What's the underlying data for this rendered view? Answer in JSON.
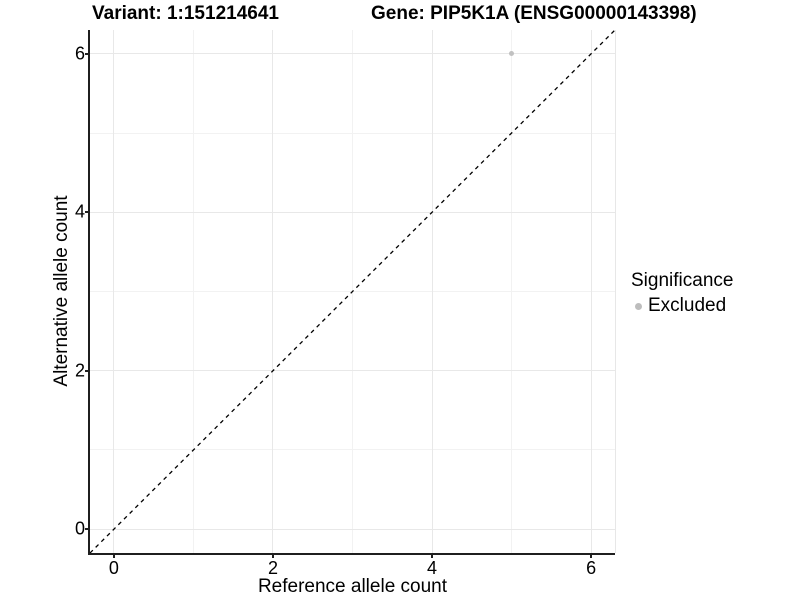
{
  "chart_data": {
    "type": "scatter",
    "title_left": "Variant: 1:151214641",
    "title_right": "Gene: PIP5K1A (ENSG00000143398)",
    "xlabel": "Reference allele count",
    "ylabel": "Alternative allele count",
    "xlim": [
      -0.3,
      6.3
    ],
    "ylim": [
      -0.3,
      6.3
    ],
    "x_major_ticks": [
      0,
      2,
      4,
      6
    ],
    "x_minor_gridlines": [
      1,
      3,
      5
    ],
    "y_major_ticks": [
      0,
      2,
      4,
      6
    ],
    "y_minor_gridlines": [
      1,
      3,
      5
    ],
    "grid": "on",
    "series": [
      {
        "name": "Excluded",
        "color": "#c1c1c1",
        "points": [
          {
            "x": 5,
            "y": 6
          }
        ]
      }
    ],
    "reference_line": {
      "style": "dashed",
      "slope": 1,
      "intercept": 0,
      "color": "#000000"
    },
    "legend": {
      "title": "Significance",
      "position": "right",
      "entries": [
        {
          "label": "Excluded",
          "color": "#bdbdbd"
        }
      ]
    }
  },
  "colors": {
    "background": "#ffffff",
    "grid_major": "#e8e8e8",
    "grid_minor": "#f2f2f2",
    "axis_line": "#1f1f1f",
    "panel_border_right": "#e7e7e7",
    "text": "#000000"
  }
}
